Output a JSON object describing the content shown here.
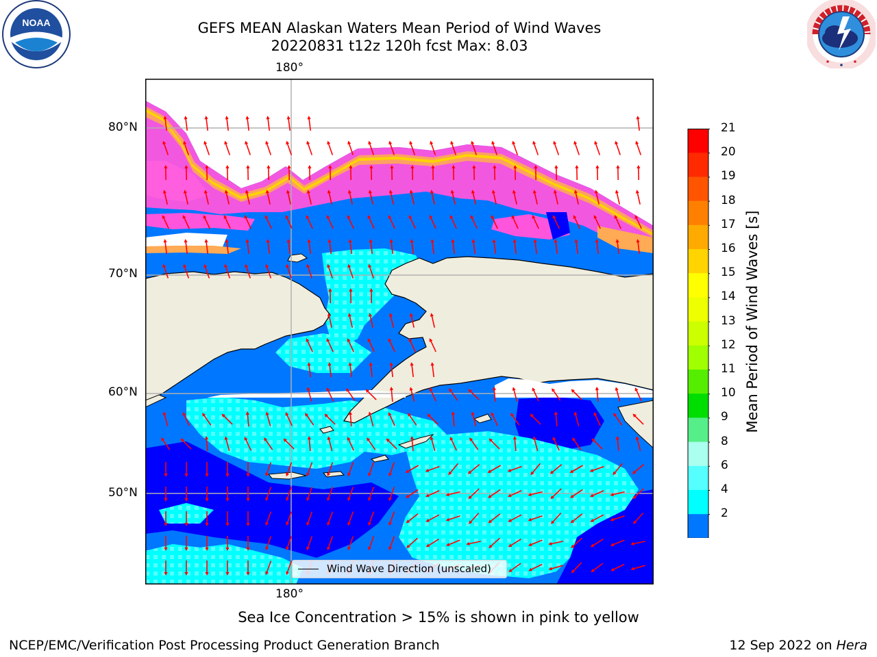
{
  "title": {
    "line1": "GEFS MEAN Alaskan Waters Mean Period of Wind Waves",
    "line2": "20220831 t12z 120h fcst   Max: 8.03"
  },
  "logos": {
    "left": {
      "icon": "noaa-logo-icon",
      "text": "NOAA"
    },
    "right": {
      "icon": "nws-logo-icon",
      "text": "NATIONAL WEATHER SERVICE"
    }
  },
  "map": {
    "longitude_label_top": "180°",
    "longitude_label_bottom": "180°",
    "latitude_labels": [
      "80°N",
      "70°N",
      "60°N",
      "50°N"
    ],
    "legend_text": "Wind Wave Direction (unscaled)",
    "colors": {
      "land": "#efedde",
      "ice_free_background": "#ffffff",
      "arrow": "#ff0000",
      "grid": "#b0b0b0"
    }
  },
  "colorbar": {
    "title": "Mean Period of Wind Waves [s]",
    "tick_labels": [
      "21",
      "20",
      "19",
      "18",
      "17",
      "16",
      "15",
      "14",
      "13",
      "12",
      "11",
      "10",
      "9",
      "8",
      "6",
      "4",
      "2"
    ],
    "colors": [
      "#ff0000",
      "#ff2a00",
      "#ff5500",
      "#ff8000",
      "#ffaa00",
      "#ffd400",
      "#ffff00",
      "#eeff00",
      "#ccff00",
      "#a0ff00",
      "#55ee00",
      "#00dd00",
      "#55ee88",
      "#aaffee",
      "#55ffff",
      "#00ffff",
      "#0077ff"
    ],
    "under_color": "#0000ff"
  },
  "note": "Sea Ice Concentration > 15% is shown in pink to yellow",
  "footer": {
    "left": "NCEP/EMC/Verification Post Processing Product Generation Branch",
    "right_date": "12 Sep 2022 on",
    "right_host": "Hera"
  }
}
